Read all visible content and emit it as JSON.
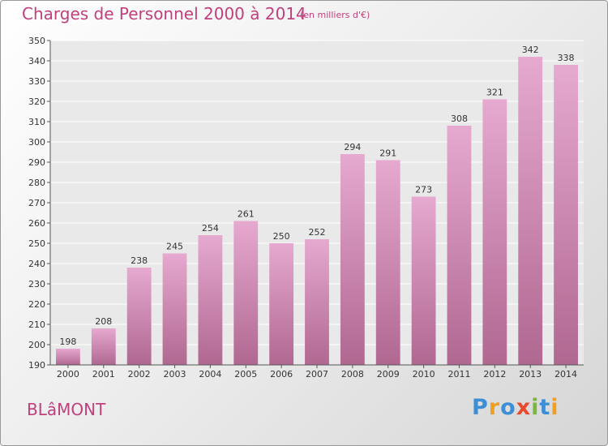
{
  "title": "Charges de Personnel 2000 à 2014",
  "subtitle": "(en milliers d'€)",
  "city": "BLâMONT",
  "logo": {
    "text": "Proxiti",
    "letters": [
      "P",
      "r",
      "o",
      "x",
      "i",
      "t",
      "i"
    ],
    "colors": [
      "#3c8fd6",
      "#f0a020",
      "#3c8fd6",
      "#e84a2c",
      "#78b83a",
      "#3c8fd6",
      "#f0a020"
    ]
  },
  "colors": {
    "accent": "#c0407d",
    "bar_top": "#e6a9d0",
    "bar_bottom": "#b06891"
  },
  "chart_data": {
    "type": "bar",
    "title": "Charges de Personnel 2000 à 2014",
    "xlabel": "",
    "ylabel": "",
    "categories": [
      "2000",
      "2001",
      "2002",
      "2003",
      "2004",
      "2005",
      "2006",
      "2007",
      "2008",
      "2009",
      "2010",
      "2011",
      "2012",
      "2013",
      "2014"
    ],
    "values": [
      198,
      208,
      238,
      245,
      254,
      261,
      250,
      252,
      294,
      291,
      273,
      308,
      321,
      342,
      338
    ],
    "ylim": [
      190,
      350
    ],
    "yticks": [
      190,
      200,
      210,
      220,
      230,
      240,
      250,
      260,
      270,
      280,
      290,
      300,
      310,
      320,
      330,
      340,
      350
    ],
    "grid": true
  }
}
